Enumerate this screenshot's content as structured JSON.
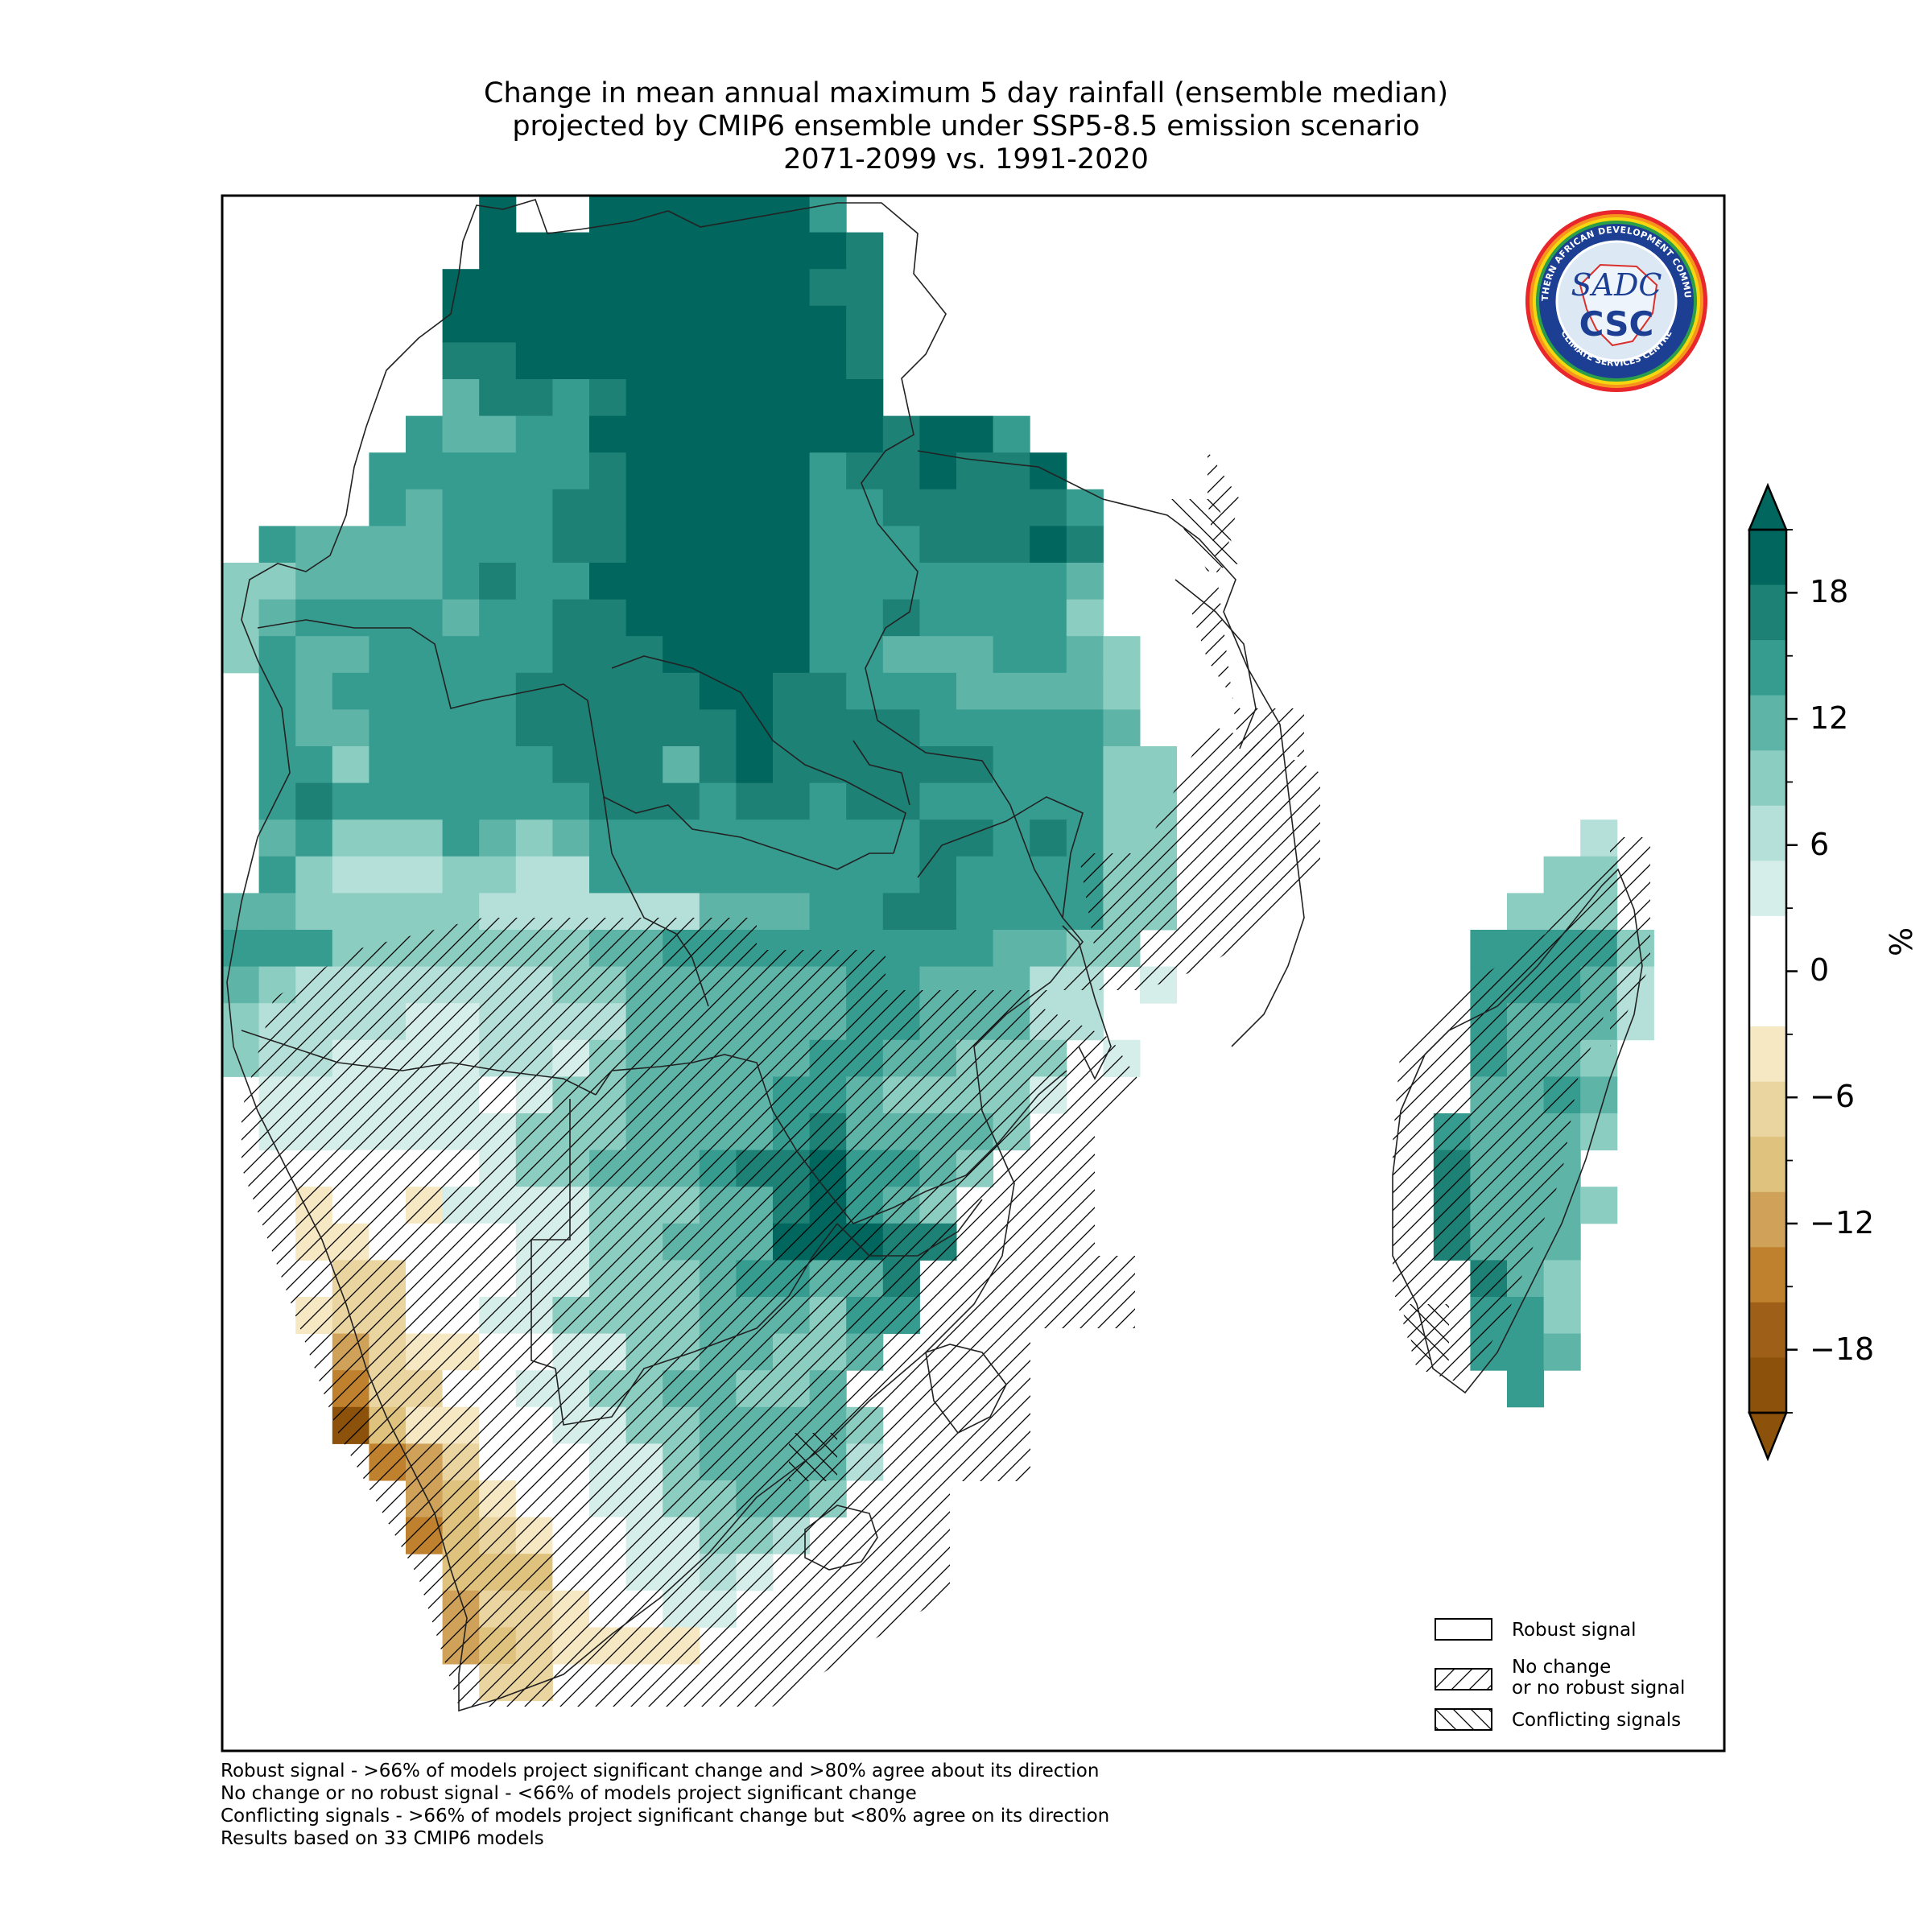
{
  "title_lines": [
    "Change in mean annual maximum 5 day rainfall (ensemble median)",
    "projected by CMIP6 ensemble under SSP5-8.5 emission scenario",
    "2071-2099 vs. 1991-2020"
  ],
  "colorbar": {
    "unit": "%",
    "ticks": [
      18,
      12,
      6,
      0,
      -6,
      -12,
      -18
    ],
    "tick_labels": [
      "18",
      "12",
      "6",
      "0",
      "−6",
      "−12",
      "−18"
    ],
    "extend": "both",
    "colors": [
      "#01665e",
      "#1d8176",
      "#359c8f",
      "#5fb4a8",
      "#8ccdc1",
      "#b4e0d9",
      "#d6eeea",
      "#ffffff",
      "#ffffff",
      "#f6e8c3",
      "#ead5a0",
      "#dfc27d",
      "#cfa159",
      "#bf812d",
      "#9e6019",
      "#8c510a"
    ]
  },
  "legend": {
    "items": [
      {
        "label_lines": [
          "Robust signal"
        ],
        "pattern": "none"
      },
      {
        "label_lines": [
          "No change",
          "or no robust signal"
        ],
        "pattern": "forward-hatch"
      },
      {
        "label_lines": [
          "Conflicting signals"
        ],
        "pattern": "back-hatch"
      }
    ]
  },
  "footnotes": [
    "Robust signal - >66% of models project significant change and >80% agree about its direction",
    "No change or no robust signal - <66% of models project significant change",
    "Conflicting signals - >66% of models project significant change but <80% agree on its direction",
    "Results based on 33 CMIP6 models"
  ],
  "logo": {
    "text_top": "SOUTHERN AFRICAN DEVELOPMENT COMMUNITY",
    "text_bottom": "CLIMATE SERVICES CENTRE",
    "text_sadc": "SADC",
    "text_csc": "CSC"
  },
  "map": {
    "region": "Southern Africa",
    "value_colors": {
      "very_high": "#01665e",
      "high": "#1d8176",
      "mid_high": "#359c8f",
      "mid": "#5fb4a8",
      "low": "#8ccdc1",
      "very_low": "#b4e0d9",
      "slight": "#d6eeea",
      "none": "#ffffff",
      "dry1": "#f6e8c3",
      "dry2": "#ead5a0",
      "dry3": "#dfc27d",
      "dry4": "#cfa159",
      "dry5": "#bf812d",
      "dry6": "#8c510a"
    }
  }
}
